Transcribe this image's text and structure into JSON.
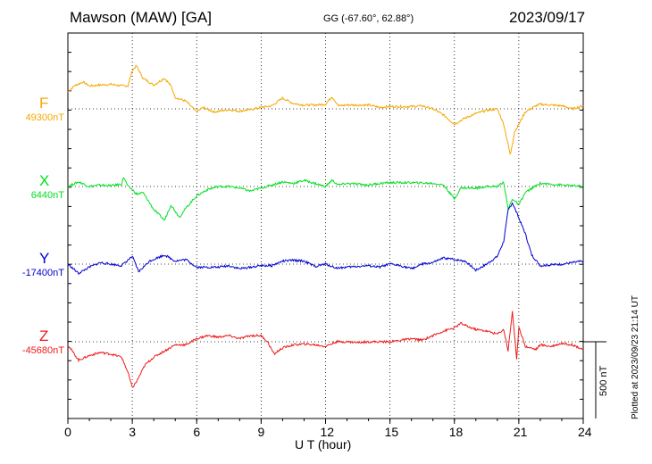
{
  "header": {
    "station": "Mawson (MAW)  [GA]",
    "coords": "GG (-67.60°,  62.88°)",
    "date": "2023/09/17"
  },
  "plotted_note": "Plotted at 2023/09/23 21:14 UT",
  "scale_label": "500 nT",
  "chart_data": {
    "type": "line",
    "title": "Mawson (MAW)  [GA]",
    "xlabel": "U T (hour)",
    "xlim": [
      0,
      24
    ],
    "xticks": [
      "0",
      "3",
      "6",
      "9",
      "12",
      "15",
      "18",
      "21",
      "24"
    ],
    "grid": true,
    "scale_bar_nT": 500,
    "series": [
      {
        "name": "F",
        "baseline_label": "49300nT",
        "color": "#f5a800",
        "points": [
          [
            0,
            110
          ],
          [
            0.3,
            150
          ],
          [
            0.7,
            175
          ],
          [
            1,
            150
          ],
          [
            1.5,
            155
          ],
          [
            2,
            160
          ],
          [
            2.5,
            150
          ],
          [
            2.8,
            150
          ],
          [
            3,
            250
          ],
          [
            3.2,
            280
          ],
          [
            3.5,
            200
          ],
          [
            4,
            155
          ],
          [
            4.5,
            200
          ],
          [
            4.8,
            150
          ],
          [
            5,
            75
          ],
          [
            5.5,
            50
          ],
          [
            6,
            -20
          ],
          [
            6.3,
            10
          ],
          [
            6.8,
            -20
          ],
          [
            7.5,
            -5
          ],
          [
            8,
            -15
          ],
          [
            8.5,
            -5
          ],
          [
            9,
            10
          ],
          [
            9.5,
            20
          ],
          [
            10,
            70
          ],
          [
            10.5,
            35
          ],
          [
            11,
            25
          ],
          [
            11.5,
            25
          ],
          [
            12,
            30
          ],
          [
            12.3,
            80
          ],
          [
            12.6,
            20
          ],
          [
            13,
            25
          ],
          [
            14,
            25
          ],
          [
            14.5,
            10
          ],
          [
            15,
            15
          ],
          [
            15.5,
            15
          ],
          [
            16,
            15
          ],
          [
            16.5,
            20
          ],
          [
            17,
            0
          ],
          [
            17.5,
            -40
          ],
          [
            18,
            -100
          ],
          [
            18.5,
            -60
          ],
          [
            19,
            -30
          ],
          [
            19.5,
            -10
          ],
          [
            20,
            0
          ],
          [
            20.3,
            -100
          ],
          [
            20.6,
            -300
          ],
          [
            20.8,
            -150
          ],
          [
            21,
            -100
          ],
          [
            21.3,
            -20
          ],
          [
            21.8,
            20
          ],
          [
            22,
            30
          ],
          [
            23,
            20
          ],
          [
            23.5,
            0
          ],
          [
            24,
            20
          ]
        ]
      },
      {
        "name": "X",
        "baseline_label": "6440nT",
        "color": "#00e020",
        "points": [
          [
            0,
            0
          ],
          [
            0.5,
            30
          ],
          [
            1,
            0
          ],
          [
            1.5,
            10
          ],
          [
            2,
            5
          ],
          [
            2.5,
            15
          ],
          [
            2.6,
            60
          ],
          [
            2.8,
            0
          ],
          [
            3,
            -20
          ],
          [
            3.2,
            -50
          ],
          [
            3.5,
            -40
          ],
          [
            4,
            -150
          ],
          [
            4.5,
            -220
          ],
          [
            4.8,
            -120
          ],
          [
            5.2,
            -200
          ],
          [
            5.5,
            -140
          ],
          [
            6,
            -60
          ],
          [
            6.5,
            -20
          ],
          [
            7,
            0
          ],
          [
            7.5,
            0
          ],
          [
            8,
            -10
          ],
          [
            8.5,
            -30
          ],
          [
            9,
            -10
          ],
          [
            9.5,
            10
          ],
          [
            10,
            30
          ],
          [
            10.5,
            20
          ],
          [
            11,
            40
          ],
          [
            11.5,
            20
          ],
          [
            12,
            0
          ],
          [
            12.3,
            40
          ],
          [
            12.6,
            10
          ],
          [
            13,
            20
          ],
          [
            14,
            10
          ],
          [
            14.5,
            20
          ],
          [
            15,
            25
          ],
          [
            16,
            25
          ],
          [
            17,
            20
          ],
          [
            17.5,
            10
          ],
          [
            18,
            -80
          ],
          [
            18.3,
            -10
          ],
          [
            19,
            -10
          ],
          [
            19.5,
            0
          ],
          [
            20,
            0
          ],
          [
            20.3,
            30
          ],
          [
            20.5,
            -150
          ],
          [
            20.7,
            -80
          ],
          [
            21,
            -120
          ],
          [
            21.3,
            -40
          ],
          [
            21.8,
            5
          ],
          [
            22,
            20
          ],
          [
            23,
            10
          ],
          [
            24,
            0
          ]
        ]
      },
      {
        "name": "Y",
        "baseline_label": "-17400nT",
        "color": "#0000d0",
        "points": [
          [
            0,
            0
          ],
          [
            0.5,
            -60
          ],
          [
            1,
            -20
          ],
          [
            1.5,
            10
          ],
          [
            2,
            0
          ],
          [
            2.5,
            -10
          ],
          [
            3,
            50
          ],
          [
            3.3,
            -50
          ],
          [
            3.8,
            20
          ],
          [
            4.5,
            60
          ],
          [
            5,
            20
          ],
          [
            5.5,
            30
          ],
          [
            6,
            -20
          ],
          [
            6.5,
            -20
          ],
          [
            7,
            -20
          ],
          [
            7.5,
            -10
          ],
          [
            8,
            -30
          ],
          [
            8.5,
            -20
          ],
          [
            9,
            -10
          ],
          [
            9.5,
            -10
          ],
          [
            10,
            20
          ],
          [
            10.5,
            25
          ],
          [
            11,
            20
          ],
          [
            11.5,
            -15
          ],
          [
            12,
            0
          ],
          [
            12.5,
            -25
          ],
          [
            13,
            -20
          ],
          [
            13.5,
            -15
          ],
          [
            14,
            -10
          ],
          [
            14.5,
            -20
          ],
          [
            15,
            0
          ],
          [
            15.5,
            -10
          ],
          [
            16,
            -30
          ],
          [
            16.5,
            0
          ],
          [
            17,
            10
          ],
          [
            17.5,
            40
          ],
          [
            18,
            30
          ],
          [
            18.5,
            20
          ],
          [
            19,
            -40
          ],
          [
            19.5,
            0
          ],
          [
            20,
            50
          ],
          [
            20.3,
            150
          ],
          [
            20.5,
            350
          ],
          [
            20.7,
            400
          ],
          [
            21,
            300
          ],
          [
            21.3,
            200
          ],
          [
            21.6,
            60
          ],
          [
            22,
            -10
          ],
          [
            23,
            0
          ],
          [
            24,
            20
          ]
        ]
      },
      {
        "name": "Z",
        "baseline_label": "-45680nT",
        "color": "#ee1a1a",
        "points": [
          [
            0,
            -20
          ],
          [
            0.5,
            -120
          ],
          [
            1,
            -90
          ],
          [
            1.5,
            -70
          ],
          [
            2,
            -80
          ],
          [
            2.5,
            -100
          ],
          [
            2.8,
            -200
          ],
          [
            3,
            -300
          ],
          [
            3.2,
            -260
          ],
          [
            3.6,
            -150
          ],
          [
            4,
            -100
          ],
          [
            4.5,
            -60
          ],
          [
            5,
            -20
          ],
          [
            5.5,
            -20
          ],
          [
            6,
            20
          ],
          [
            6.5,
            40
          ],
          [
            7,
            30
          ],
          [
            7.5,
            40
          ],
          [
            8,
            20
          ],
          [
            8.5,
            40
          ],
          [
            9,
            40
          ],
          [
            9.3,
            0
          ],
          [
            9.6,
            -80
          ],
          [
            10,
            -40
          ],
          [
            10.5,
            -20
          ],
          [
            11,
            -15
          ],
          [
            11.5,
            -20
          ],
          [
            12,
            -30
          ],
          [
            12.5,
            0
          ],
          [
            13,
            0
          ],
          [
            13.5,
            -5
          ],
          [
            14,
            0
          ],
          [
            15,
            0
          ],
          [
            15.5,
            10
          ],
          [
            16,
            20
          ],
          [
            16.5,
            10
          ],
          [
            17,
            40
          ],
          [
            17.5,
            70
          ],
          [
            18,
            90
          ],
          [
            18.3,
            120
          ],
          [
            18.6,
            100
          ],
          [
            19,
            80
          ],
          [
            19.5,
            70
          ],
          [
            20,
            50
          ],
          [
            20.3,
            80
          ],
          [
            20.5,
            -60
          ],
          [
            20.7,
            200
          ],
          [
            20.9,
            -120
          ],
          [
            21,
            100
          ],
          [
            21.3,
            -30
          ],
          [
            21.8,
            -50
          ],
          [
            22,
            -20
          ],
          [
            22.5,
            -30
          ],
          [
            23,
            -10
          ],
          [
            23.5,
            -20
          ],
          [
            24,
            -50
          ]
        ]
      }
    ]
  }
}
